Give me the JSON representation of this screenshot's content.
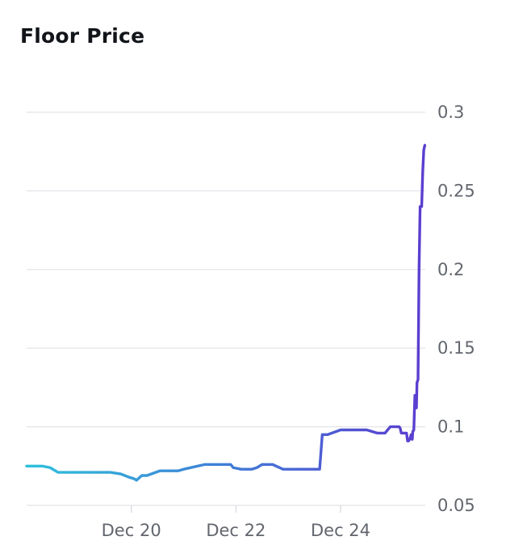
{
  "page": {
    "title": "Floor Price"
  },
  "chart_data": {
    "type": "line",
    "title": "Floor Price",
    "xlabel": "",
    "ylabel": "",
    "x_unit": "day (Dec)",
    "xlim": [
      18.0,
      25.65
    ],
    "ylim": [
      0.05,
      0.3
    ],
    "y_axis_position": "right",
    "grid": "horizontal",
    "x_ticks": [
      {
        "value": 20,
        "label": "Dec 20"
      },
      {
        "value": 22,
        "label": "Dec 22"
      },
      {
        "value": 24,
        "label": "Dec 24"
      }
    ],
    "y_ticks": [
      {
        "value": 0.3,
        "label": "0.3"
      },
      {
        "value": 0.25,
        "label": "0.25"
      },
      {
        "value": 0.2,
        "label": "0.2"
      },
      {
        "value": 0.15,
        "label": "0.15"
      },
      {
        "value": 0.1,
        "label": "0.1"
      },
      {
        "value": 0.05,
        "label": "0.05"
      }
    ],
    "line_gradient": [
      "#2ec1dc",
      "#3f7fd6",
      "#5a3fd0"
    ],
    "series": [
      {
        "x": [
          18.0,
          18.3,
          18.45,
          18.6,
          19.0,
          19.3,
          19.6,
          19.8,
          19.95,
          20.05,
          20.1,
          20.2,
          20.3,
          20.55,
          20.65,
          20.75,
          20.85,
          20.9,
          21.0,
          21.4,
          21.5,
          21.55,
          21.7,
          21.9,
          21.95,
          22.1,
          22.2,
          22.3,
          22.4,
          22.5,
          22.55,
          22.56,
          22.7,
          22.9,
          23.2,
          23.4,
          23.6,
          23.65,
          23.75,
          24.0,
          24.3,
          24.35,
          24.4,
          24.5,
          24.6,
          24.7,
          24.8,
          24.85,
          24.95,
          25.0,
          25.02,
          25.05,
          25.08,
          25.12,
          25.14,
          25.16,
          25.19,
          25.22,
          25.24,
          25.25,
          25.26,
          25.28,
          25.3,
          25.32,
          25.35,
          25.36,
          25.37,
          25.38,
          25.4,
          25.42,
          25.44,
          25.45
        ],
        "y": [
          0.075,
          0.075,
          0.074,
          0.071,
          0.071,
          0.071,
          0.071,
          0.07,
          0.068,
          0.067,
          0.066,
          0.069,
          0.069,
          0.072,
          0.072,
          0.072,
          0.072,
          0.072,
          0.073,
          0.076,
          0.076,
          0.076,
          0.076,
          0.076,
          0.074,
          0.073,
          0.073,
          0.073,
          0.074,
          0.076,
          0.076,
          0.076,
          0.076,
          0.073,
          0.073,
          0.073,
          0.073,
          0.095,
          0.095,
          0.098,
          0.098,
          0.098,
          0.098,
          0.098,
          0.097,
          0.096,
          0.096,
          0.096,
          0.1,
          0.1,
          0.1,
          0.1,
          0.1,
          0.1,
          0.099,
          0.096,
          0.096,
          0.096,
          0.096,
          0.096,
          0.096,
          0.091,
          0.091,
          0.092,
          0.095,
          0.094,
          0.092,
          0.097,
          0.098,
          0.12,
          0.118,
          0.112
        ]
      }
    ]
  }
}
